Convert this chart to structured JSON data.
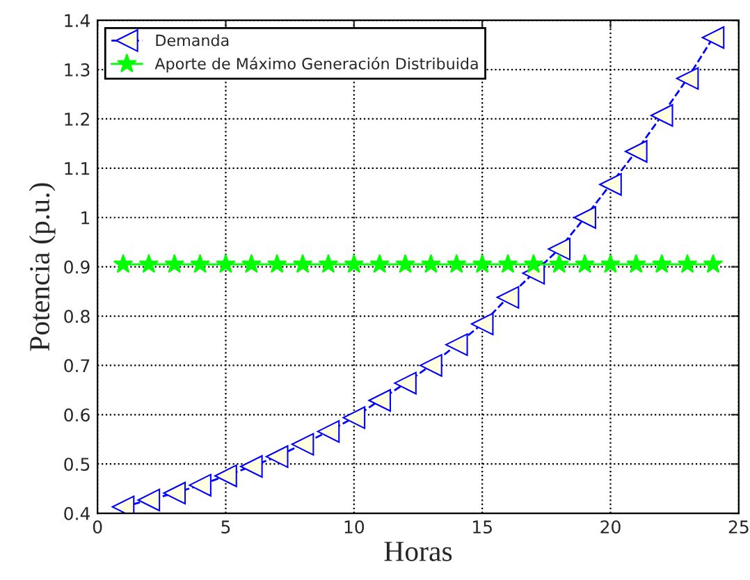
{
  "chart_data": {
    "type": "line",
    "xlabel": "Horas",
    "ylabel": "Potencia (p.u.)",
    "x": [
      1,
      2,
      3,
      4,
      5,
      6,
      7,
      8,
      9,
      10,
      11,
      12,
      13,
      14,
      15,
      16,
      17,
      18,
      19,
      20,
      21,
      22,
      23,
      24
    ],
    "series": [
      {
        "name": "Demanda",
        "color": "#0000ff",
        "marker": "triangle",
        "line_style": "dashed",
        "values": [
          0.413,
          0.427,
          0.441,
          0.457,
          0.476,
          0.495,
          0.515,
          0.54,
          0.566,
          0.594,
          0.629,
          0.664,
          0.7,
          0.742,
          0.784,
          0.838,
          0.887,
          0.936,
          1.0,
          1.067,
          1.134,
          1.207,
          1.282,
          1.365
        ]
      },
      {
        "name": "Aporte de Máximo Generación Distribuida",
        "color": "#00ff00",
        "marker": "star",
        "line_style": "solid",
        "values": [
          0.905,
          0.905,
          0.905,
          0.905,
          0.905,
          0.905,
          0.905,
          0.905,
          0.905,
          0.905,
          0.905,
          0.905,
          0.905,
          0.905,
          0.905,
          0.905,
          0.905,
          0.905,
          0.905,
          0.905,
          0.905,
          0.905,
          0.905,
          0.905
        ]
      }
    ],
    "xlim": [
      0,
      25
    ],
    "xticks": [
      0,
      5,
      10,
      15,
      20,
      25
    ],
    "ylim": [
      0.4,
      1.4
    ],
    "yticks": [
      0.4,
      0.5,
      0.6,
      0.7,
      0.8,
      0.9,
      1,
      1.1,
      1.2,
      1.3,
      1.4
    ],
    "grid": true,
    "legend": "top left"
  }
}
